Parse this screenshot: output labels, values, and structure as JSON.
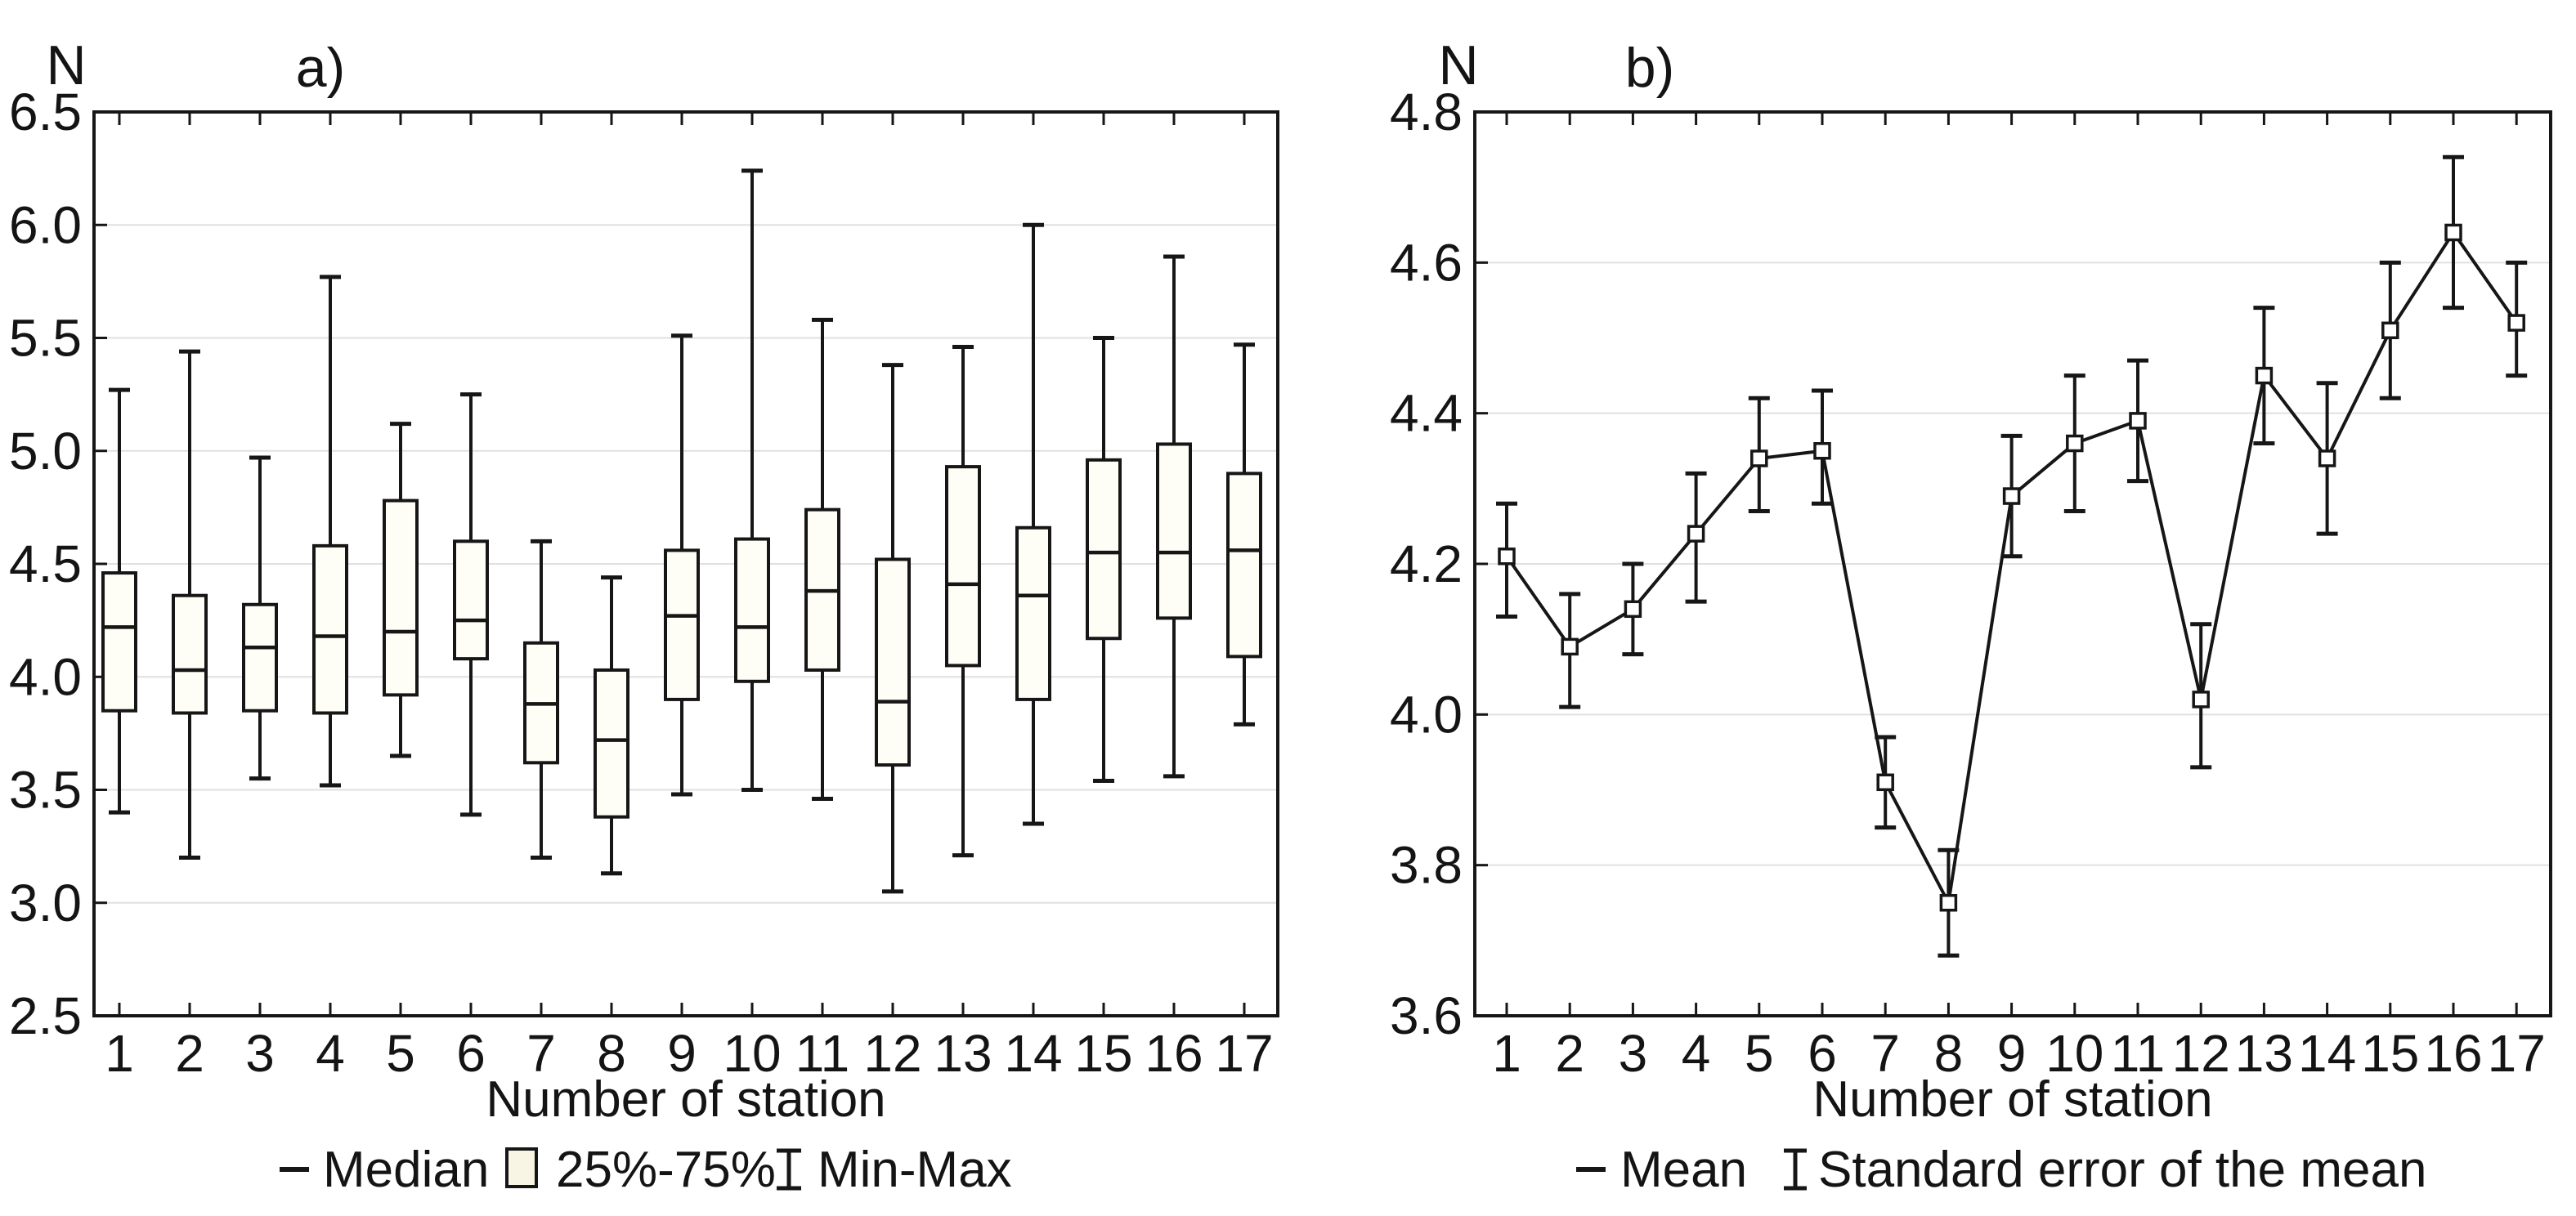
{
  "colors": {
    "line": "#161616",
    "text": "#141414",
    "grid": "#e0e0e0",
    "box_fill": "#fffef6",
    "legend_box_fill": "#f8f5e4",
    "marker_fill": "#ffffff",
    "background": "#ffffff"
  },
  "chart_data": [
    {
      "type": "boxplot",
      "title": "a)",
      "ylabel": "N",
      "xlabel": "Number of station",
      "categories": [
        "1",
        "2",
        "3",
        "4",
        "5",
        "6",
        "7",
        "8",
        "9",
        "10",
        "11",
        "12",
        "13",
        "14",
        "15",
        "16",
        "17"
      ],
      "ylim": [
        2.5,
        6.5
      ],
      "yticks": [
        6.5,
        6.0,
        5.5,
        5.0,
        4.5,
        4.0,
        3.5,
        3.0,
        2.5
      ],
      "grid": true,
      "legend": [
        "Median",
        "25%-75%",
        "Min-Max"
      ],
      "legend_symbols": [
        "median-dash",
        "box-25-75",
        "minmax-whisker"
      ],
      "boxes": [
        {
          "station": 1,
          "min": 3.4,
          "q1": 3.85,
          "median": 4.22,
          "q3": 4.46,
          "max": 5.27
        },
        {
          "station": 2,
          "min": 3.2,
          "q1": 3.84,
          "median": 4.03,
          "q3": 4.36,
          "max": 5.44
        },
        {
          "station": 3,
          "min": 3.55,
          "q1": 3.85,
          "median": 4.13,
          "q3": 4.32,
          "max": 4.97
        },
        {
          "station": 4,
          "min": 3.52,
          "q1": 3.84,
          "median": 4.18,
          "q3": 4.58,
          "max": 5.77
        },
        {
          "station": 5,
          "min": 3.65,
          "q1": 3.92,
          "median": 4.2,
          "q3": 4.78,
          "max": 5.12
        },
        {
          "station": 6,
          "min": 3.39,
          "q1": 4.08,
          "median": 4.25,
          "q3": 4.6,
          "max": 5.25
        },
        {
          "station": 7,
          "min": 3.2,
          "q1": 3.62,
          "median": 3.88,
          "q3": 4.15,
          "max": 4.6
        },
        {
          "station": 8,
          "min": 3.13,
          "q1": 3.38,
          "median": 3.72,
          "q3": 4.03,
          "max": 4.44
        },
        {
          "station": 9,
          "min": 3.48,
          "q1": 3.9,
          "median": 4.27,
          "q3": 4.56,
          "max": 5.51
        },
        {
          "station": 10,
          "min": 3.5,
          "q1": 3.98,
          "median": 4.22,
          "q3": 4.61,
          "max": 6.24
        },
        {
          "station": 11,
          "min": 3.46,
          "q1": 4.03,
          "median": 4.38,
          "q3": 4.74,
          "max": 5.58
        },
        {
          "station": 12,
          "min": 3.05,
          "q1": 3.61,
          "median": 3.89,
          "q3": 4.52,
          "max": 5.38
        },
        {
          "station": 13,
          "min": 3.21,
          "q1": 4.05,
          "median": 4.41,
          "q3": 4.93,
          "max": 5.46
        },
        {
          "station": 14,
          "min": 3.35,
          "q1": 3.9,
          "median": 4.36,
          "q3": 4.66,
          "max": 6.0
        },
        {
          "station": 15,
          "min": 3.54,
          "q1": 4.17,
          "median": 4.55,
          "q3": 4.96,
          "max": 5.5
        },
        {
          "station": 16,
          "min": 3.56,
          "q1": 4.26,
          "median": 4.55,
          "q3": 5.03,
          "max": 5.86
        },
        {
          "station": 17,
          "min": 3.79,
          "q1": 4.09,
          "median": 4.56,
          "q3": 4.9,
          "max": 5.47
        }
      ]
    },
    {
      "type": "line-errorbar",
      "title": "b)",
      "ylabel": "N",
      "xlabel": "Number of station",
      "categories": [
        "1",
        "2",
        "3",
        "4",
        "5",
        "6",
        "7",
        "8",
        "9",
        "10",
        "11",
        "12",
        "13",
        "14",
        "15",
        "16",
        "17"
      ],
      "ylim": [
        3.6,
        4.8
      ],
      "yticks": [
        4.8,
        4.6,
        4.4,
        4.2,
        4.0,
        3.8,
        3.6
      ],
      "grid": true,
      "legend": [
        "Mean",
        "Standard error of the mean"
      ],
      "legend_symbols": [
        "mean-dash",
        "se-whisker"
      ],
      "points": [
        {
          "station": 1,
          "mean": 4.21,
          "se_low": 4.13,
          "se_high": 4.28
        },
        {
          "station": 2,
          "mean": 4.09,
          "se_low": 4.01,
          "se_high": 4.16
        },
        {
          "station": 3,
          "mean": 4.14,
          "se_low": 4.08,
          "se_high": 4.2
        },
        {
          "station": 4,
          "mean": 4.24,
          "se_low": 4.15,
          "se_high": 4.32
        },
        {
          "station": 5,
          "mean": 4.34,
          "se_low": 4.27,
          "se_high": 4.42
        },
        {
          "station": 6,
          "mean": 4.35,
          "se_low": 4.28,
          "se_high": 4.43
        },
        {
          "station": 7,
          "mean": 3.91,
          "se_low": 3.85,
          "se_high": 3.97
        },
        {
          "station": 8,
          "mean": 3.75,
          "se_low": 3.68,
          "se_high": 3.82
        },
        {
          "station": 9,
          "mean": 4.29,
          "se_low": 4.21,
          "se_high": 4.37
        },
        {
          "station": 10,
          "mean": 4.36,
          "se_low": 4.27,
          "se_high": 4.45
        },
        {
          "station": 11,
          "mean": 4.39,
          "se_low": 4.31,
          "se_high": 4.47
        },
        {
          "station": 12,
          "mean": 4.02,
          "se_low": 3.93,
          "se_high": 4.12
        },
        {
          "station": 13,
          "mean": 4.45,
          "se_low": 4.36,
          "se_high": 4.54
        },
        {
          "station": 14,
          "mean": 4.34,
          "se_low": 4.24,
          "se_high": 4.44
        },
        {
          "station": 15,
          "mean": 4.51,
          "se_low": 4.42,
          "se_high": 4.6
        },
        {
          "station": 16,
          "mean": 4.64,
          "se_low": 4.54,
          "se_high": 4.74
        },
        {
          "station": 17,
          "mean": 4.52,
          "se_low": 4.45,
          "se_high": 4.6
        }
      ]
    }
  ]
}
